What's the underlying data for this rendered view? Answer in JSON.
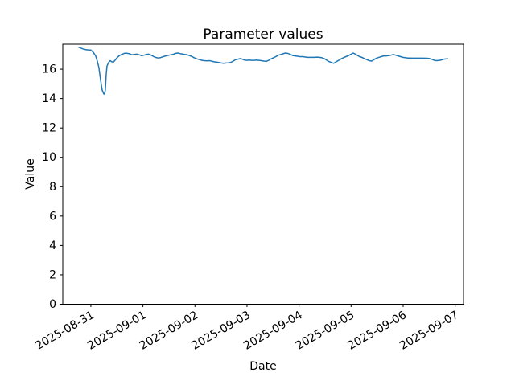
{
  "figure": {
    "background": "#ffffff",
    "title": "Parameter values"
  },
  "chart_data": {
    "type": "line",
    "title": "Parameter values",
    "xlabel": "Date",
    "ylabel": "Value",
    "grid": false,
    "legend": null,
    "x_unit": "days since 2025-08-31 00:00",
    "xlim": [
      -0.54,
      7.16
    ],
    "ylim": [
      0,
      17.7
    ],
    "x_ticks": [
      0,
      1,
      2,
      3,
      4,
      5,
      6,
      7
    ],
    "x_tick_labels": [
      "2025-08-31",
      "2025-09-01",
      "2025-09-02",
      "2025-09-03",
      "2025-09-04",
      "2025-09-05",
      "2025-09-06",
      "2025-09-07"
    ],
    "x_tick_label_rotation_deg": 30,
    "y_ticks": [
      0,
      2,
      4,
      6,
      8,
      10,
      12,
      14,
      16
    ],
    "y_tick_labels": [
      "0",
      "2",
      "4",
      "6",
      "8",
      "10",
      "12",
      "14",
      "16"
    ],
    "series": [
      {
        "name": "parameter-values",
        "color": "#1f77b4",
        "line_width": 1.5,
        "points": [
          [
            -0.24,
            17.5
          ],
          [
            -0.201,
            17.45
          ],
          [
            -0.155,
            17.38
          ],
          [
            -0.108,
            17.34
          ],
          [
            -0.046,
            17.31
          ],
          [
            0.0,
            17.3
          ],
          [
            0.046,
            17.15
          ],
          [
            0.093,
            16.9
          ],
          [
            0.124,
            16.55
          ],
          [
            0.155,
            16.1
          ],
          [
            0.185,
            15.3
          ],
          [
            0.216,
            14.6
          ],
          [
            0.247,
            14.32
          ],
          [
            0.263,
            14.3
          ],
          [
            0.278,
            14.6
          ],
          [
            0.294,
            15.6
          ],
          [
            0.309,
            16.2
          ],
          [
            0.34,
            16.45
          ],
          [
            0.371,
            16.58
          ],
          [
            0.402,
            16.5
          ],
          [
            0.433,
            16.48
          ],
          [
            0.464,
            16.6
          ],
          [
            0.495,
            16.75
          ],
          [
            0.541,
            16.9
          ],
          [
            0.587,
            17.0
          ],
          [
            0.649,
            17.08
          ],
          [
            0.696,
            17.08
          ],
          [
            0.742,
            17.05
          ],
          [
            0.788,
            16.98
          ],
          [
            0.835,
            17.0
          ],
          [
            0.881,
            17.02
          ],
          [
            0.927,
            16.98
          ],
          [
            0.974,
            16.92
          ],
          [
            1.02,
            16.95
          ],
          [
            1.067,
            17.0
          ],
          [
            1.113,
            17.02
          ],
          [
            1.159,
            16.95
          ],
          [
            1.206,
            16.86
          ],
          [
            1.252,
            16.79
          ],
          [
            1.298,
            16.76
          ],
          [
            1.345,
            16.79
          ],
          [
            1.391,
            16.85
          ],
          [
            1.437,
            16.9
          ],
          [
            1.484,
            16.94
          ],
          [
            1.53,
            16.97
          ],
          [
            1.577,
            17.0
          ],
          [
            1.623,
            17.07
          ],
          [
            1.669,
            17.1
          ],
          [
            1.716,
            17.06
          ],
          [
            1.762,
            17.03
          ],
          [
            1.808,
            17.0
          ],
          [
            1.855,
            16.97
          ],
          [
            1.901,
            16.92
          ],
          [
            1.947,
            16.85
          ],
          [
            1.994,
            16.76
          ],
          [
            2.04,
            16.7
          ],
          [
            2.087,
            16.65
          ],
          [
            2.133,
            16.6
          ],
          [
            2.179,
            16.58
          ],
          [
            2.226,
            16.57
          ],
          [
            2.272,
            16.58
          ],
          [
            2.318,
            16.55
          ],
          [
            2.365,
            16.5
          ],
          [
            2.411,
            16.48
          ],
          [
            2.457,
            16.45
          ],
          [
            2.504,
            16.42
          ],
          [
            2.55,
            16.4
          ],
          [
            2.597,
            16.42
          ],
          [
            2.643,
            16.43
          ],
          [
            2.689,
            16.46
          ],
          [
            2.736,
            16.55
          ],
          [
            2.782,
            16.65
          ],
          [
            2.828,
            16.68
          ],
          [
            2.875,
            16.72
          ],
          [
            2.906,
            16.68
          ],
          [
            2.952,
            16.62
          ],
          [
            2.998,
            16.6
          ],
          [
            3.045,
            16.62
          ],
          [
            3.091,
            16.6
          ],
          [
            3.138,
            16.6
          ],
          [
            3.184,
            16.62
          ],
          [
            3.23,
            16.6
          ],
          [
            3.277,
            16.58
          ],
          [
            3.323,
            16.55
          ],
          [
            3.369,
            16.53
          ],
          [
            3.416,
            16.6
          ],
          [
            3.462,
            16.7
          ],
          [
            3.508,
            16.77
          ],
          [
            3.555,
            16.85
          ],
          [
            3.601,
            16.95
          ],
          [
            3.648,
            17.0
          ],
          [
            3.694,
            17.05
          ],
          [
            3.74,
            17.1
          ],
          [
            3.787,
            17.07
          ],
          [
            3.833,
            17.0
          ],
          [
            3.879,
            16.93
          ],
          [
            3.926,
            16.9
          ],
          [
            3.972,
            16.88
          ],
          [
            4.018,
            16.85
          ],
          [
            4.065,
            16.85
          ],
          [
            4.111,
            16.83
          ],
          [
            4.158,
            16.8
          ],
          [
            4.204,
            16.8
          ],
          [
            4.25,
            16.8
          ],
          [
            4.297,
            16.8
          ],
          [
            4.343,
            16.82
          ],
          [
            4.389,
            16.8
          ],
          [
            4.436,
            16.78
          ],
          [
            4.482,
            16.72
          ],
          [
            4.528,
            16.62
          ],
          [
            4.575,
            16.52
          ],
          [
            4.621,
            16.45
          ],
          [
            4.667,
            16.4
          ],
          [
            4.714,
            16.5
          ],
          [
            4.76,
            16.6
          ],
          [
            4.807,
            16.7
          ],
          [
            4.853,
            16.78
          ],
          [
            4.899,
            16.85
          ],
          [
            4.946,
            16.92
          ],
          [
            4.992,
            17.0
          ],
          [
            5.038,
            17.1
          ],
          [
            5.069,
            17.05
          ],
          [
            5.116,
            16.95
          ],
          [
            5.162,
            16.85
          ],
          [
            5.208,
            16.8
          ],
          [
            5.255,
            16.72
          ],
          [
            5.301,
            16.65
          ],
          [
            5.348,
            16.58
          ],
          [
            5.394,
            16.55
          ],
          [
            5.44,
            16.65
          ],
          [
            5.487,
            16.75
          ],
          [
            5.533,
            16.8
          ],
          [
            5.579,
            16.85
          ],
          [
            5.626,
            16.9
          ],
          [
            5.672,
            16.9
          ],
          [
            5.718,
            16.92
          ],
          [
            5.765,
            16.95
          ],
          [
            5.811,
            17.0
          ],
          [
            5.857,
            16.95
          ],
          [
            5.904,
            16.9
          ],
          [
            5.95,
            16.85
          ],
          [
            5.997,
            16.8
          ],
          [
            6.089,
            16.76
          ],
          [
            6.182,
            16.75
          ],
          [
            6.275,
            16.75
          ],
          [
            6.368,
            16.75
          ],
          [
            6.46,
            16.74
          ],
          [
            6.507,
            16.72
          ],
          [
            6.553,
            16.67
          ],
          [
            6.599,
            16.6
          ],
          [
            6.646,
            16.58
          ],
          [
            6.692,
            16.6
          ],
          [
            6.738,
            16.63
          ],
          [
            6.785,
            16.68
          ],
          [
            6.831,
            16.7
          ],
          [
            6.862,
            16.72
          ]
        ]
      }
    ]
  },
  "style": {
    "spine_color": "#000000",
    "tick_color": "#000000",
    "text_color": "#000000",
    "tick_length": 3.5
  }
}
